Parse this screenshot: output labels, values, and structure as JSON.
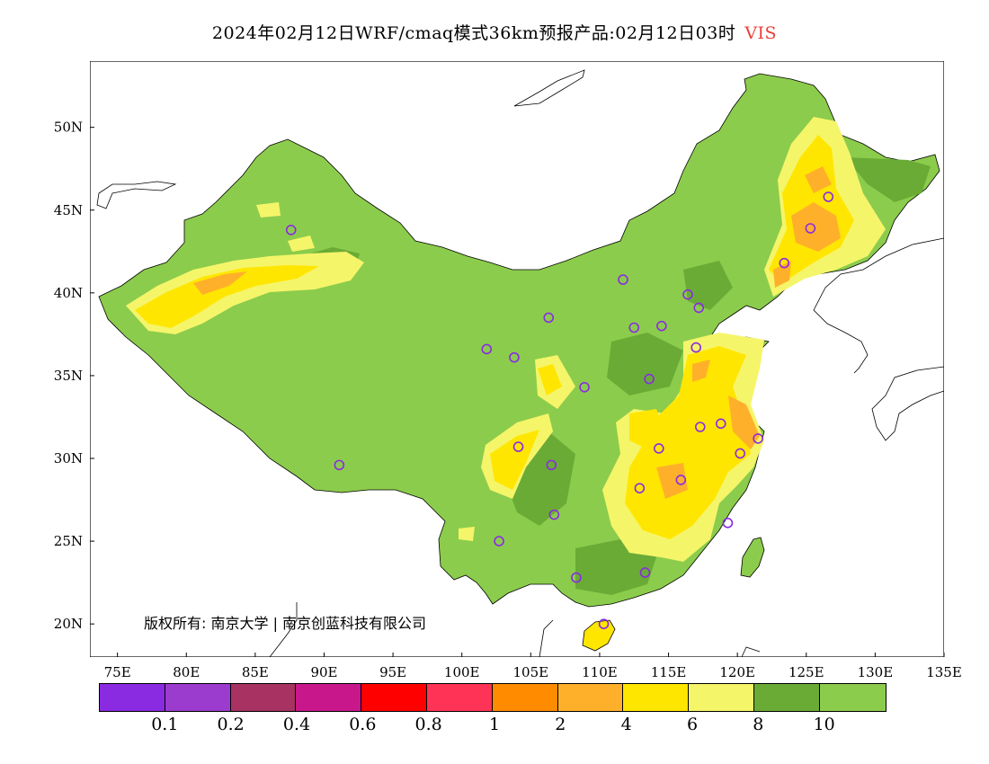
{
  "title": {
    "main": "2024年02月12日WRF/cmaq模式36km预报产品:02月12日03时",
    "variable": "VIS"
  },
  "map": {
    "lon_labels": [
      "75E",
      "80E",
      "85E",
      "90E",
      "95E",
      "100E",
      "105E",
      "110E",
      "115E",
      "120E",
      "125E",
      "130E",
      "135E"
    ],
    "lat_labels": [
      "50N",
      "45N",
      "40N",
      "35N",
      "30N",
      "25N",
      "20N"
    ],
    "lon_range": [
      73,
      135
    ],
    "lat_range": [
      18,
      54
    ],
    "copyright": "版权所有: 南京大学 | 南京创蓝科技有限公司"
  },
  "colorbar": {
    "colors": [
      "#8a2be2",
      "#9b3ccf",
      "#a83262",
      "#c8178a",
      "#ff0000",
      "#ff3355",
      "#ff8c00",
      "#ffb02a",
      "#ffe600",
      "#f5f56a",
      "#6aab36",
      "#8ccc4c"
    ],
    "labels": [
      "0.1",
      "0.2",
      "0.4",
      "0.6",
      "0.8",
      "1",
      "2",
      "4",
      "6",
      "8",
      "10"
    ]
  },
  "stations": [
    [
      87.6,
      43.8
    ],
    [
      91.1,
      29.6
    ],
    [
      101.8,
      36.6
    ],
    [
      103.8,
      36.1
    ],
    [
      106.3,
      38.5
    ],
    [
      111.7,
      40.8
    ],
    [
      112.5,
      37.9
    ],
    [
      114.5,
      38.0
    ],
    [
      116.4,
      39.9
    ],
    [
      117.2,
      39.1
    ],
    [
      117.0,
      36.7
    ],
    [
      113.6,
      34.8
    ],
    [
      108.9,
      34.3
    ],
    [
      104.1,
      30.7
    ],
    [
      106.5,
      29.6
    ],
    [
      106.7,
      26.6
    ],
    [
      102.7,
      25.0
    ],
    [
      108.3,
      22.8
    ],
    [
      113.3,
      23.1
    ],
    [
      110.3,
      20.0
    ],
    [
      112.9,
      28.2
    ],
    [
      114.3,
      30.6
    ],
    [
      115.9,
      28.7
    ],
    [
      117.3,
      31.9
    ],
    [
      118.8,
      32.1
    ],
    [
      120.2,
      30.3
    ],
    [
      121.5,
      31.2
    ],
    [
      119.3,
      26.1
    ],
    [
      123.4,
      41.8
    ],
    [
      125.3,
      43.9
    ],
    [
      126.6,
      45.8
    ]
  ]
}
